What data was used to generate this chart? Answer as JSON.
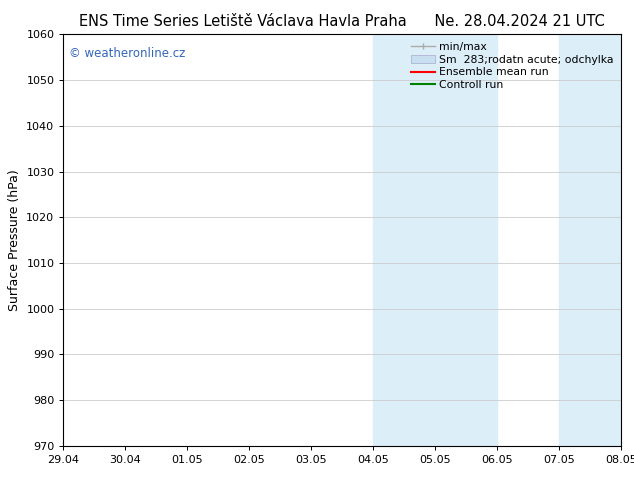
{
  "title_left": "ENS Time Series Letiště Václava Havla Praha",
  "title_right": "Ne. 28.04.2024 21 UTC",
  "ylabel": "Surface Pressure (hPa)",
  "ylim": [
    970,
    1060
  ],
  "yticks": [
    970,
    980,
    990,
    1000,
    1010,
    1020,
    1030,
    1040,
    1050,
    1060
  ],
  "xtick_labels": [
    "29.04",
    "30.04",
    "01.05",
    "02.05",
    "03.05",
    "04.05",
    "05.05",
    "06.05",
    "07.05",
    "08.05"
  ],
  "xtick_positions": [
    0,
    1,
    2,
    3,
    4,
    5,
    6,
    7,
    8,
    9
  ],
  "shaded_regions": [
    {
      "xmin": 5.0,
      "xmax": 7.0,
      "color": "#dceef8"
    },
    {
      "xmin": 8.0,
      "xmax": 9.0,
      "color": "#dceef8"
    }
  ],
  "watermark": "© weatheronline.cz",
  "watermark_color": "#3366bb",
  "legend_labels": [
    "min/max",
    "Sm  283;rodatn acute; odchylka",
    "Ensemble mean run",
    "Controll run"
  ],
  "legend_colors": [
    "#aaaaaa",
    "#c8dff0",
    "red",
    "green"
  ],
  "bg_color": "#ffffff",
  "plot_bg_color": "#ffffff",
  "grid_color": "#cccccc",
  "title_fontsize": 10.5,
  "ylabel_fontsize": 9,
  "tick_fontsize": 8,
  "legend_fontsize": 7.8,
  "watermark_fontsize": 8.5
}
